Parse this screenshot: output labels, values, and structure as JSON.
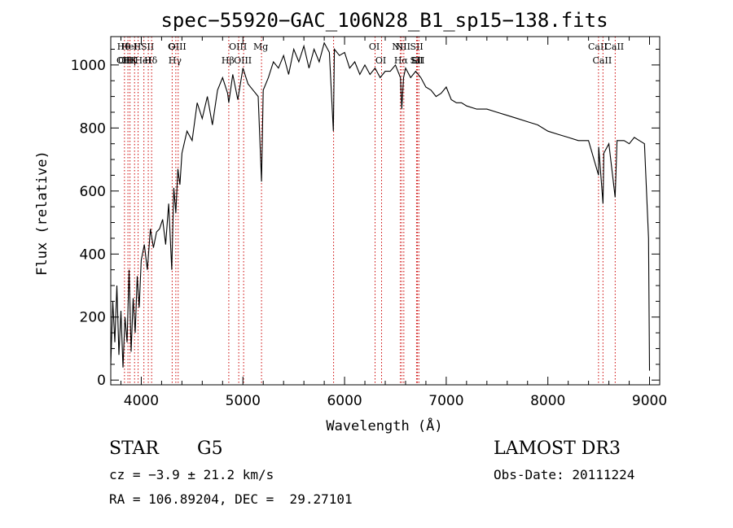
{
  "chart_data": {
    "type": "line",
    "title": "spec−55920−GAC_106N28_B1_sp15−138.fits",
    "xlabel": "Wavelength (Å)",
    "ylabel": "Flux (relative)",
    "xlim": [
      3700,
      9100
    ],
    "ylim": [
      -15,
      1090
    ],
    "xticks": [
      4000,
      5000,
      6000,
      7000,
      8000,
      9000
    ],
    "yticks": [
      0,
      200,
      400,
      600,
      800,
      1000
    ],
    "line_color": "#000000",
    "marker_color": "#cc0000",
    "series": [
      {
        "name": "flux",
        "x": [
          3700,
          3720,
          3740,
          3760,
          3780,
          3800,
          3820,
          3840,
          3860,
          3880,
          3900,
          3920,
          3940,
          3960,
          3980,
          4000,
          4030,
          4060,
          4090,
          4120,
          4150,
          4180,
          4210,
          4240,
          4270,
          4300,
          4320,
          4340,
          4360,
          4380,
          4400,
          4450,
          4500,
          4550,
          4600,
          4650,
          4700,
          4750,
          4800,
          4850,
          4861,
          4900,
          4950,
          5000,
          5050,
          5100,
          5150,
          5183,
          5200,
          5250,
          5300,
          5350,
          5400,
          5450,
          5500,
          5550,
          5600,
          5650,
          5700,
          5750,
          5800,
          5850,
          5890,
          5900,
          5950,
          6000,
          6050,
          6100,
          6150,
          6200,
          6250,
          6300,
          6350,
          6400,
          6450,
          6500,
          6550,
          6563,
          6580,
          6600,
          6650,
          6700,
          6750,
          6800,
          6850,
          6900,
          6950,
          7000,
          7050,
          7100,
          7150,
          7200,
          7300,
          7400,
          7500,
          7600,
          7700,
          7800,
          7900,
          8000,
          8100,
          8200,
          8300,
          8400,
          8498,
          8500,
          8542,
          8550,
          8600,
          8662,
          8680,
          8700,
          8750,
          8800,
          8850,
          8900,
          8950,
          8990,
          9000
        ],
        "y": [
          50,
          250,
          120,
          300,
          80,
          220,
          40,
          200,
          120,
          350,
          90,
          260,
          150,
          330,
          230,
          380,
          430,
          350,
          480,
          420,
          470,
          480,
          510,
          430,
          560,
          350,
          610,
          530,
          670,
          620,
          720,
          790,
          760,
          880,
          830,
          900,
          810,
          920,
          960,
          910,
          880,
          970,
          890,
          990,
          940,
          920,
          900,
          630,
          920,
          960,
          1010,
          990,
          1030,
          970,
          1050,
          1010,
          1060,
          990,
          1050,
          1010,
          1070,
          1040,
          790,
          1050,
          1030,
          1040,
          990,
          1010,
          970,
          1000,
          970,
          990,
          960,
          980,
          980,
          1000,
          960,
          860,
          960,
          990,
          960,
          980,
          960,
          930,
          920,
          900,
          910,
          930,
          890,
          880,
          880,
          870,
          860,
          860,
          850,
          840,
          830,
          820,
          810,
          790,
          780,
          770,
          760,
          760,
          650,
          740,
          560,
          720,
          750,
          580,
          760,
          760,
          760,
          750,
          770,
          760,
          750,
          450,
          30
        ]
      }
    ],
    "line_markers": [
      {
        "x": 3835,
        "labels": [
          "Hθ",
          "OII"
        ]
      },
      {
        "x": 3869,
        "labels": [
          "OIII"
        ]
      },
      {
        "x": 3889,
        "labels": [
          "HeI",
          "Hη"
        ]
      },
      {
        "x": 3934,
        "labels": [
          "K"
        ]
      },
      {
        "x": 3969,
        "labels": [
          "H"
        ]
      },
      {
        "x": 4026,
        "labels": [
          "HeI"
        ]
      },
      {
        "x": 4069,
        "labels": [
          "SII"
        ]
      },
      {
        "x": 4102,
        "labels": [
          "Hδ"
        ]
      },
      {
        "x": 4304,
        "labels": [
          "G"
        ]
      },
      {
        "x": 4340,
        "labels": [
          "Hγ"
        ]
      },
      {
        "x": 4363,
        "labels": [
          "OIII"
        ]
      },
      {
        "x": 4861,
        "labels": [
          "Hβ"
        ]
      },
      {
        "x": 4959,
        "labels": [
          "OIII"
        ]
      },
      {
        "x": 5007,
        "labels": [
          "OIII"
        ]
      },
      {
        "x": 5183,
        "labels": [
          "Mg"
        ]
      },
      {
        "x": 5892,
        "labels": []
      },
      {
        "x": 6300,
        "labels": [
          "OI"
        ]
      },
      {
        "x": 6364,
        "labels": [
          "OI"
        ]
      },
      {
        "x": 6548,
        "labels": [
          "NII"
        ]
      },
      {
        "x": 6563,
        "labels": [
          "Hα"
        ]
      },
      {
        "x": 6583,
        "labels": [
          "NII"
        ]
      },
      {
        "x": 6708,
        "labels": [
          "Li"
        ]
      },
      {
        "x": 6717,
        "labels": [
          "SII",
          "SII"
        ]
      },
      {
        "x": 6731,
        "labels": [
          "SII"
        ]
      },
      {
        "x": 8498,
        "labels": [
          "CaII"
        ]
      },
      {
        "x": 8542,
        "labels": [
          "CaII"
        ]
      },
      {
        "x": 8662,
        "labels": [
          "CaII"
        ]
      }
    ]
  },
  "info": {
    "class_label": "STAR",
    "subclass": "G5",
    "survey": "LAMOST DR3",
    "cz": "cz = −3.9 ± 21.2 km/s",
    "obs_date": "Obs-Date: 20111224",
    "coords": "RA = 106.89204, DEC =  29.27101"
  }
}
